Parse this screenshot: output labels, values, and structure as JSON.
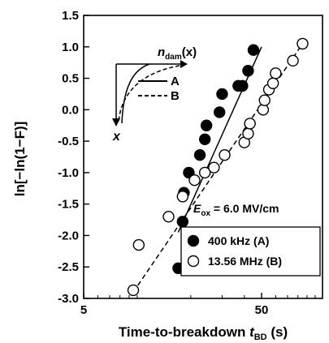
{
  "chart_data": {
    "type": "scatter",
    "xlabel": "Time-to-breakdown",
    "xlabel_sym": "t",
    "xlabel_sub": "BD",
    "xlabel_unit": "(s)",
    "ylabel": "ln[−ln(1−F)]",
    "xscale": "log",
    "xlim": [
      5,
      110
    ],
    "ylim": [
      -3.0,
      1.5
    ],
    "xticks": [
      {
        "value": 5,
        "label": "5"
      },
      {
        "value": 50,
        "label": "50"
      }
    ],
    "yticks": [
      {
        "value": 1.5,
        "label": "1.5"
      },
      {
        "value": 1.0,
        "label": "1.0"
      },
      {
        "value": 0.5,
        "label": "0.5"
      },
      {
        "value": 0.0,
        "label": "0.0"
      },
      {
        "value": -0.5,
        "label": "-0.5"
      },
      {
        "value": -1.0,
        "label": "-1.0"
      },
      {
        "value": -1.5,
        "label": "-1.5"
      },
      {
        "value": -2.0,
        "label": "-2.0"
      },
      {
        "value": -2.5,
        "label": "-2.5"
      },
      {
        "value": -3.0,
        "label": "-3.0"
      }
    ],
    "annotation": {
      "sym": "E",
      "sub": "ox",
      "text": " = 6.0 MV/cm"
    },
    "inset": {
      "title_sym": "n",
      "title_sub": "dam",
      "title_arg": "(x)",
      "axis_label": "x",
      "line_a_label": "A",
      "line_b_label": "B"
    },
    "legend_position": "bottom-right",
    "series": [
      {
        "name": "400 kHz (A)",
        "marker": "filled",
        "points": [
          [
            17,
            -2.52
          ],
          [
            18,
            -1.78
          ],
          [
            18.3,
            -1.32
          ],
          [
            19.5,
            -1.0
          ],
          [
            22.5,
            -0.72
          ],
          [
            24,
            -0.47
          ],
          [
            24.5,
            -0.25
          ],
          [
            29,
            -0.04
          ],
          [
            30,
            0.25
          ],
          [
            37,
            0.38
          ],
          [
            39,
            0.38
          ],
          [
            42,
            0.62
          ],
          [
            45,
            0.95
          ]
        ],
        "fit": [
          [
            17,
            -1.95
          ],
          [
            50,
            1.0
          ]
        ]
      },
      {
        "name": "13.56 MHz (B)",
        "marker": "open",
        "points": [
          [
            9.5,
            -2.87
          ],
          [
            10.2,
            -2.15
          ],
          [
            15,
            -1.7
          ],
          [
            18,
            -1.38
          ],
          [
            21,
            -1.12
          ],
          [
            24,
            -1.0
          ],
          [
            27,
            -0.92
          ],
          [
            31,
            -0.72
          ],
          [
            40,
            -0.52
          ],
          [
            42,
            -0.38
          ],
          [
            43,
            -0.22
          ],
          [
            51,
            0.0
          ],
          [
            52,
            0.15
          ],
          [
            55,
            0.32
          ],
          [
            58,
            0.42
          ],
          [
            60,
            0.58
          ],
          [
            75,
            0.78
          ],
          [
            85,
            1.05
          ]
        ],
        "fit": [
          [
            9.5,
            -2.9
          ],
          [
            85,
            1.05
          ]
        ]
      }
    ]
  }
}
